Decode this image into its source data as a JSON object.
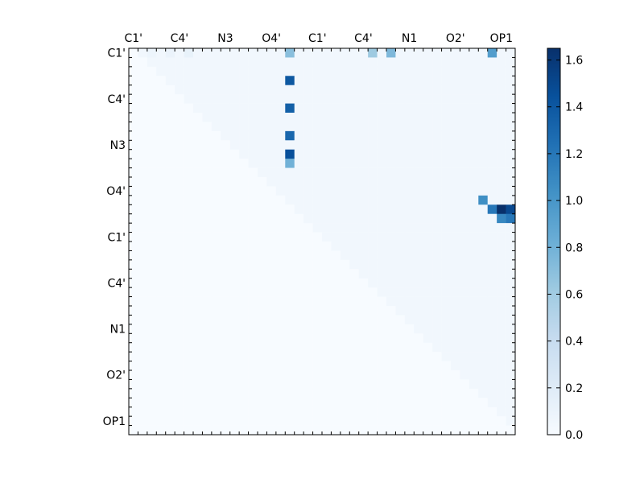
{
  "chart_data": {
    "type": "heatmap",
    "title": "",
    "xlabel": "",
    "ylabel": "",
    "n": 42,
    "x_tick_labels": [
      "C1'",
      "C4'",
      "N3",
      "O4'",
      "C1'",
      "C4'",
      "N1",
      "O2'",
      "OP1"
    ],
    "y_tick_labels": [
      "C1'",
      "C4'",
      "N3",
      "O4'",
      "C1'",
      "C4'",
      "N1",
      "O2'",
      "OP1"
    ],
    "tick_indices": [
      0,
      5,
      10,
      15,
      20,
      25,
      30,
      35,
      40
    ],
    "colorscale": "Blues",
    "colors": {
      "low": "#f7fbff",
      "mid": "#6baed6",
      "high": "#08306b"
    },
    "vmin": 0.0,
    "vmax": 1.65,
    "colorbar_ticks": [
      "0.0",
      "0.2",
      "0.4",
      "0.6",
      "0.8",
      "1.0",
      "1.2",
      "1.4",
      "1.6"
    ],
    "colorbar_tick_values": [
      0.0,
      0.2,
      0.4,
      0.6,
      0.8,
      1.0,
      1.2,
      1.4,
      1.6
    ],
    "lower_triangle_value": 0.0,
    "upper_triangle_cells": [
      {
        "row": 0,
        "col": 1,
        "value": 0.05
      },
      {
        "row": 0,
        "col": 2,
        "value": 0.08
      },
      {
        "row": 0,
        "col": 4,
        "value": 0.1
      },
      {
        "row": 0,
        "col": 6,
        "value": 0.12
      },
      {
        "row": 0,
        "col": 17,
        "value": 0.7
      },
      {
        "row": 0,
        "col": 26,
        "value": 0.62
      },
      {
        "row": 0,
        "col": 28,
        "value": 0.75
      },
      {
        "row": 0,
        "col": 39,
        "value": 0.95
      },
      {
        "row": 3,
        "col": 17,
        "value": 1.4
      },
      {
        "row": 6,
        "col": 17,
        "value": 1.35
      },
      {
        "row": 9,
        "col": 17,
        "value": 1.3
      },
      {
        "row": 11,
        "col": 17,
        "value": 1.45
      },
      {
        "row": 12,
        "col": 17,
        "value": 0.8
      },
      {
        "row": 16,
        "col": 38,
        "value": 1.05
      },
      {
        "row": 17,
        "col": 39,
        "value": 1.2
      },
      {
        "row": 17,
        "col": 40,
        "value": 1.65
      },
      {
        "row": 17,
        "col": 41,
        "value": 1.5
      },
      {
        "row": 18,
        "col": 40,
        "value": 1.1
      },
      {
        "row": 18,
        "col": 41,
        "value": 1.2
      }
    ]
  }
}
